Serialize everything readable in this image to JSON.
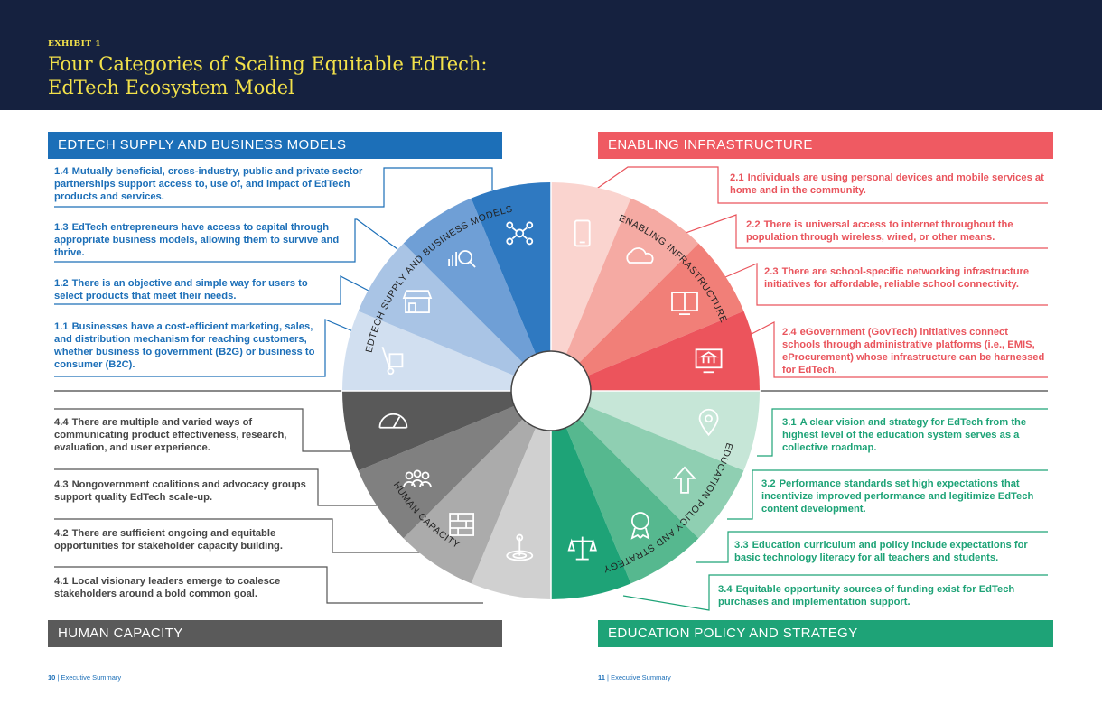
{
  "header": {
    "exhibit": "EXHIBIT 1",
    "title_line1": "Four Categories of Scaling Equitable EdTech:",
    "title_line2": "EdTech Ecosystem Model"
  },
  "colors": {
    "navy": "#15213f",
    "yellow": "#f2e14a",
    "blue": "#1c6fb8",
    "red": "#e9545c",
    "green": "#1ea377",
    "grey": "#5a5a5a"
  },
  "quadrants": {
    "supply": {
      "banner": "EDTECH SUPPLY AND BUSINESS MODELS",
      "wheel_label": "EDTECH SUPPLY AND BUSINESS MODELS",
      "items": [
        {
          "num": "1.4",
          "text": "Mutually beneficial, cross-industry, public and private sector partnerships support access to, use of, and impact of EdTech products and services."
        },
        {
          "num": "1.3",
          "text": "EdTech entrepreneurs have access to capital through appropriate business models, allowing them to survive and thrive."
        },
        {
          "num": "1.2",
          "text": "There is an objective and simple way for users to select products that meet their needs."
        },
        {
          "num": "1.1",
          "text": "Businesses have a cost-efficient marketing, sales, and distribution mechanism for reaching customers, whether business to government (B2G) or business to consumer (B2C)."
        }
      ]
    },
    "infrastructure": {
      "banner": "ENABLING INFRASTRUCTURE",
      "wheel_label": "ENABLING INFRASTRUCTURE",
      "items": [
        {
          "num": "2.1",
          "text": "Individuals are using personal devices and mobile services at home and in the community."
        },
        {
          "num": "2.2",
          "text": "There is universal access to internet throughout the population through wireless, wired, or other means."
        },
        {
          "num": "2.3",
          "text": "There are school-specific networking infrastructure initiatives for affordable, reliable school connectivity."
        },
        {
          "num": "2.4",
          "text": "eGovernment (GovTech) initiatives connect schools through administrative platforms (i.e., EMIS, eProcurement) whose infrastructure can be harnessed for EdTech."
        }
      ]
    },
    "policy": {
      "banner": "EDUCATION POLICY AND STRATEGY",
      "wheel_label": "EDUCATION POLICY AND STRATEGY",
      "items": [
        {
          "num": "3.1",
          "text": "A clear vision and strategy for EdTech from the highest level of the education system serves as a collective roadmap."
        },
        {
          "num": "3.2",
          "text": "Performance standards set high expectations that incentivize improved performance and legitimize EdTech content development."
        },
        {
          "num": "3.3",
          "text": "Education curriculum and policy include expectations for basic technology literacy for all teachers and students."
        },
        {
          "num": "3.4",
          "text": "Equitable opportunity sources of funding exist for EdTech purchases and implementation support."
        }
      ]
    },
    "human": {
      "banner": "HUMAN CAPACITY",
      "wheel_label": "HUMAN CAPACITY",
      "items": [
        {
          "num": "4.4",
          "text": "There are multiple and varied ways of communicating product effectiveness, research, evaluation, and user experience."
        },
        {
          "num": "4.3",
          "text": "Nongovernment coalitions and advocacy groups support quality EdTech scale-up."
        },
        {
          "num": "4.2",
          "text": "There are sufficient ongoing and equitable opportunities for stakeholder capacity building."
        },
        {
          "num": "4.1",
          "text": "Local visionary leaders emerge to coalesce stakeholders around a bold common goal."
        }
      ]
    }
  },
  "icons": {
    "1.1": "hand-truck-icon",
    "1.2": "storefront-icon",
    "1.3": "investment-search-icon",
    "1.4": "network-people-icon",
    "2.1": "mobile-phone-icon",
    "2.2": "cloud-connection-icon",
    "2.3": "book-screen-icon",
    "2.4": "government-screen-icon",
    "3.1": "location-pin-icon",
    "3.2": "up-arrow-icon",
    "3.3": "award-ribbon-icon",
    "3.4": "balance-scale-icon",
    "4.1": "goal-target-icon",
    "4.2": "brick-wall-icon",
    "4.3": "group-people-icon",
    "4.4": "gauge-icon"
  },
  "footer": {
    "left_page": "10",
    "left_label": "Executive Summary",
    "right_page": "11",
    "right_label": "Executive Summary"
  }
}
